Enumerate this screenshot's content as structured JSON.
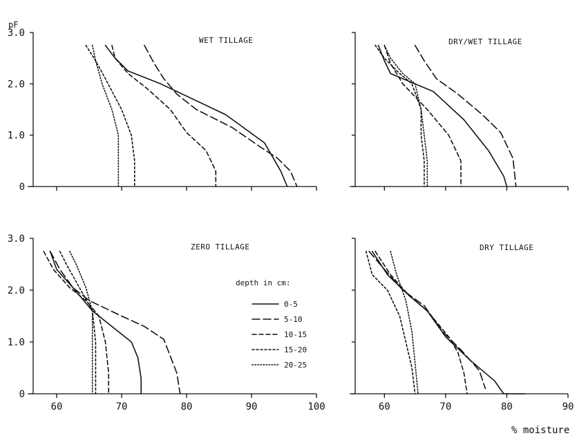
{
  "figure": {
    "ylabel": "pF",
    "xlabel": "% moisture",
    "legend_title": "depth in cm:"
  },
  "series_styles": [
    {
      "name": "0-5",
      "dash": ""
    },
    {
      "name": "5-10",
      "dash": "11,5"
    },
    {
      "name": "10-15",
      "dash": "6,4"
    },
    {
      "name": "15-20",
      "dash": "3,3"
    },
    {
      "name": "20-25",
      "dash": "1.5,2.5"
    }
  ],
  "chart_data": [
    {
      "type": "line",
      "title": "WET TILLAGE",
      "xlim": [
        60,
        100
      ],
      "ylim": [
        0,
        3.0
      ],
      "yticks": [
        "0",
        "1.0",
        "2.0",
        "3.0"
      ],
      "xticks": [],
      "series": [
        {
          "name": "0-5",
          "points": [
            [
              67.5,
              2.75
            ],
            [
              69,
              2.5
            ],
            [
              71,
              2.25
            ],
            [
              76,
              2.0
            ],
            [
              86,
              1.4
            ],
            [
              92,
              0.85
            ],
            [
              94.5,
              0.3
            ],
            [
              95.5,
              0.0
            ]
          ]
        },
        {
          "name": "5-10",
          "points": [
            [
              73.5,
              2.75
            ],
            [
              75,
              2.4
            ],
            [
              76.5,
              2.1
            ],
            [
              78.5,
              1.8
            ],
            [
              81.5,
              1.5
            ],
            [
              87,
              1.15
            ],
            [
              91,
              0.8
            ],
            [
              94,
              0.55
            ],
            [
              96,
              0.3
            ],
            [
              97,
              0.0
            ]
          ]
        },
        {
          "name": "10-15",
          "points": [
            [
              68.5,
              2.75
            ],
            [
              69,
              2.5
            ],
            [
              71,
              2.2
            ],
            [
              74,
              1.9
            ],
            [
              77.5,
              1.5
            ],
            [
              80,
              1.05
            ],
            [
              83,
              0.7
            ],
            [
              84.5,
              0.3
            ],
            [
              84.5,
              0.0
            ]
          ]
        },
        {
          "name": "15-20",
          "points": [
            [
              64.5,
              2.75
            ],
            [
              66,
              2.45
            ],
            [
              67.5,
              2.1
            ],
            [
              70,
              1.5
            ],
            [
              71.5,
              1.0
            ],
            [
              72,
              0.5
            ],
            [
              72,
              0.0
            ]
          ]
        },
        {
          "name": "20-25",
          "points": [
            [
              65.5,
              2.75
            ],
            [
              66,
              2.45
            ],
            [
              67,
              2.0
            ],
            [
              68.5,
              1.5
            ],
            [
              69.5,
              1.0
            ],
            [
              69.5,
              0.5
            ],
            [
              69.5,
              0.0
            ]
          ]
        }
      ]
    },
    {
      "type": "line",
      "title": "DRY/WET TILLAGE",
      "xlim": [
        55,
        90
      ],
      "ylim": [
        0,
        3.0
      ],
      "yticks": [],
      "xticks": [],
      "series": [
        {
          "name": "0-5",
          "points": [
            [
              59,
              2.75
            ],
            [
              60,
              2.45
            ],
            [
              61,
              2.2
            ],
            [
              63,
              2.1
            ],
            [
              68,
              1.85
            ],
            [
              73,
              1.3
            ],
            [
              77,
              0.7
            ],
            [
              79.5,
              0.2
            ],
            [
              80,
              0.0
            ]
          ]
        },
        {
          "name": "5-10",
          "points": [
            [
              65,
              2.75
            ],
            [
              66.5,
              2.45
            ],
            [
              68.5,
              2.1
            ],
            [
              72,
              1.8
            ],
            [
              76,
              1.4
            ],
            [
              79,
              1.05
            ],
            [
              81,
              0.55
            ],
            [
              81.5,
              0.0
            ]
          ]
        },
        {
          "name": "10-15",
          "points": [
            [
              60,
              2.75
            ],
            [
              61,
              2.4
            ],
            [
              63,
              2.0
            ],
            [
              67,
              1.5
            ],
            [
              70.5,
              1.0
            ],
            [
              72.5,
              0.5
            ],
            [
              72.5,
              0.0
            ]
          ]
        },
        {
          "name": "15-20",
          "points": [
            [
              58.5,
              2.75
            ],
            [
              60,
              2.5
            ],
            [
              62.5,
              2.2
            ],
            [
              64.5,
              2.0
            ],
            [
              66,
              1.5
            ],
            [
              66,
              1.0
            ],
            [
              66.5,
              0.5
            ],
            [
              66.5,
              0.0
            ]
          ]
        },
        {
          "name": "20-25",
          "points": [
            [
              60,
              2.75
            ],
            [
              61,
              2.5
            ],
            [
              63,
              2.2
            ],
            [
              65,
              2.0
            ],
            [
              66,
              1.5
            ],
            [
              66.5,
              1.0
            ],
            [
              67,
              0.5
            ],
            [
              67,
              0.0
            ]
          ]
        }
      ]
    },
    {
      "type": "line",
      "title": "ZERO TILLAGE",
      "xlim": [
        55,
        100
      ],
      "ylim": [
        0,
        3.0
      ],
      "yticks": [
        "0",
        "1.0",
        "2.0",
        "3.0"
      ],
      "xticks": [
        "60",
        "70",
        "80",
        "90",
        "100"
      ],
      "series": [
        {
          "name": "0-5",
          "points": [
            [
              59,
              2.75
            ],
            [
              60,
              2.4
            ],
            [
              62.5,
              2.05
            ],
            [
              65.5,
              1.6
            ],
            [
              69.5,
              1.2
            ],
            [
              71.5,
              1.0
            ],
            [
              72.5,
              0.7
            ],
            [
              73,
              0.3
            ],
            [
              73,
              0.0
            ]
          ]
        },
        {
          "name": "5-10",
          "points": [
            [
              59,
              2.75
            ],
            [
              60.5,
              2.4
            ],
            [
              62.5,
              2.05
            ],
            [
              65,
              1.8
            ],
            [
              70,
              1.5
            ],
            [
              73.5,
              1.3
            ],
            [
              76.5,
              1.05
            ],
            [
              78.5,
              0.4
            ],
            [
              79,
              0.0
            ]
          ]
        },
        {
          "name": "10-15",
          "points": [
            [
              58,
              2.75
            ],
            [
              59.5,
              2.4
            ],
            [
              62,
              2.05
            ],
            [
              64.5,
              1.8
            ],
            [
              66.5,
              1.5
            ],
            [
              67.5,
              1.0
            ],
            [
              68,
              0.4
            ],
            [
              68,
              0.0
            ]
          ]
        },
        {
          "name": "15-20",
          "points": [
            [
              60.5,
              2.75
            ],
            [
              61.5,
              2.5
            ],
            [
              63.5,
              2.05
            ],
            [
              65.5,
              1.6
            ],
            [
              66,
              1.0
            ],
            [
              66,
              0.5
            ],
            [
              66,
              0.0
            ]
          ]
        },
        {
          "name": "20-25",
          "points": [
            [
              62,
              2.75
            ],
            [
              63,
              2.5
            ],
            [
              64.5,
              2.05
            ],
            [
              65.5,
              1.6
            ],
            [
              65.5,
              1.0
            ],
            [
              65.5,
              0.5
            ],
            [
              65.5,
              0.0
            ]
          ]
        }
      ]
    },
    {
      "type": "line",
      "title": "DRY TILLAGE",
      "xlim": [
        55,
        90
      ],
      "ylim": [
        0,
        3.0
      ],
      "yticks": [],
      "xticks": [
        "60",
        "70",
        "80",
        "90"
      ],
      "series": [
        {
          "name": "0-5",
          "points": [
            [
              58,
              2.75
            ],
            [
              60.5,
              2.3
            ],
            [
              64,
              1.9
            ],
            [
              67,
              1.6
            ],
            [
              70,
              1.1
            ],
            [
              74,
              0.65
            ],
            [
              78,
              0.25
            ],
            [
              79.5,
              0.0
            ],
            [
              83,
              0.0
            ]
          ]
        },
        {
          "name": "5-10",
          "points": [
            [
              57.5,
              2.75
            ],
            [
              60,
              2.4
            ],
            [
              63,
              2.0
            ],
            [
              66.5,
              1.7
            ],
            [
              69.5,
              1.2
            ],
            [
              72.5,
              0.85
            ],
            [
              75.5,
              0.45
            ],
            [
              76.5,
              0.1
            ]
          ]
        },
        {
          "name": "10-15",
          "points": [
            [
              58.5,
              2.75
            ],
            [
              61,
              2.3
            ],
            [
              64,
              1.9
            ],
            [
              67,
              1.6
            ],
            [
              70.5,
              1.1
            ],
            [
              72,
              0.8
            ],
            [
              73,
              0.4
            ],
            [
              73.5,
              0.0
            ]
          ]
        },
        {
          "name": "15-20",
          "points": [
            [
              57,
              2.75
            ],
            [
              58,
              2.3
            ],
            [
              60.5,
              2.0
            ],
            [
              62.5,
              1.5
            ],
            [
              63.5,
              1.0
            ],
            [
              64.5,
              0.5
            ],
            [
              65,
              0.0
            ]
          ]
        },
        {
          "name": "20-25",
          "points": [
            [
              61,
              2.75
            ],
            [
              62,
              2.3
            ],
            [
              63.5,
              1.8
            ],
            [
              64.5,
              1.2
            ],
            [
              65,
              0.6
            ],
            [
              65.5,
              0.0
            ]
          ]
        }
      ]
    }
  ]
}
